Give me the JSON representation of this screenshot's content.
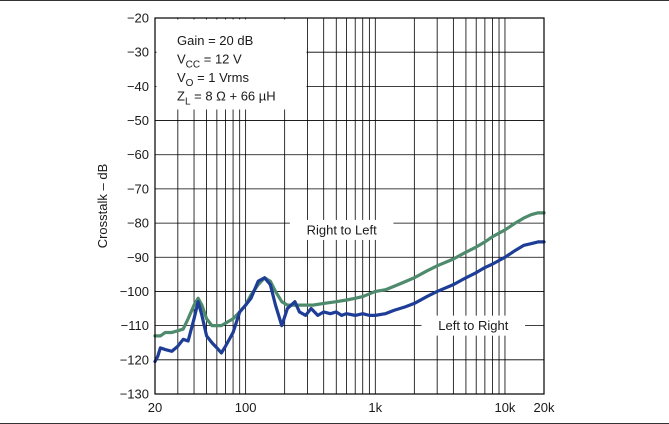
{
  "chart_data": {
    "type": "line",
    "title": "",
    "xlabel": "",
    "ylabel": "Crosstalk – dB",
    "xscale": "log",
    "xlim": [
      20,
      20000
    ],
    "ylim": [
      -130,
      -20
    ],
    "grid": true,
    "x_ticks": [
      {
        "value": 20,
        "label": "20"
      },
      {
        "value": 100,
        "label": "100"
      },
      {
        "value": 1000,
        "label": "1k"
      },
      {
        "value": 10000,
        "label": "10k"
      },
      {
        "value": 20000,
        "label": "20k"
      }
    ],
    "y_ticks": [
      -20,
      -30,
      -40,
      -50,
      -60,
      -70,
      -80,
      -90,
      -100,
      -110,
      -120,
      -130
    ],
    "conditions": [
      {
        "main": "Gain = 20 dB",
        "sub": "",
        "rest": ""
      },
      {
        "main": "V",
        "sub": "CC",
        "rest": " = 12 V"
      },
      {
        "main": "V",
        "sub": "O",
        "rest": " = 1 Vrms"
      },
      {
        "main": "Z",
        "sub": "L",
        "rest": " = 8 Ω + 66 µH"
      }
    ],
    "series": [
      {
        "name": "Right to Left",
        "color": "#4e8a6c",
        "points": [
          [
            20,
            -113
          ],
          [
            22,
            -113
          ],
          [
            24,
            -112
          ],
          [
            27,
            -112
          ],
          [
            30,
            -111.5
          ],
          [
            33,
            -111
          ],
          [
            36,
            -108
          ],
          [
            40,
            -104
          ],
          [
            43,
            -102
          ],
          [
            46,
            -104
          ],
          [
            50,
            -108
          ],
          [
            55,
            -110
          ],
          [
            60,
            -110
          ],
          [
            65,
            -110
          ],
          [
            72,
            -109
          ],
          [
            80,
            -108
          ],
          [
            90,
            -106
          ],
          [
            100,
            -104
          ],
          [
            110,
            -101
          ],
          [
            125,
            -98
          ],
          [
            140,
            -96
          ],
          [
            155,
            -97
          ],
          [
            170,
            -100
          ],
          [
            190,
            -103
          ],
          [
            210,
            -104
          ],
          [
            240,
            -104
          ],
          [
            280,
            -104
          ],
          [
            330,
            -104
          ],
          [
            400,
            -103.5
          ],
          [
            500,
            -103
          ],
          [
            600,
            -102.5
          ],
          [
            700,
            -102
          ],
          [
            800,
            -101.5
          ],
          [
            1000,
            -100
          ],
          [
            1200,
            -99.5
          ],
          [
            1500,
            -98
          ],
          [
            2000,
            -96
          ],
          [
            2500,
            -94
          ],
          [
            3000,
            -92.5
          ],
          [
            4000,
            -90.5
          ],
          [
            5000,
            -88.5
          ],
          [
            6000,
            -87
          ],
          [
            7000,
            -85.5
          ],
          [
            8000,
            -84
          ],
          [
            10000,
            -82
          ],
          [
            12000,
            -80
          ],
          [
            14000,
            -78.5
          ],
          [
            16000,
            -77.5
          ],
          [
            18000,
            -77
          ],
          [
            20000,
            -77
          ]
        ]
      },
      {
        "name": "Left to Right",
        "color": "#1e3d96",
        "points": [
          [
            20,
            -120.5
          ],
          [
            21,
            -119
          ],
          [
            22,
            -116.5
          ],
          [
            24,
            -117
          ],
          [
            27,
            -117.5
          ],
          [
            30,
            -116
          ],
          [
            33,
            -114
          ],
          [
            36,
            -114.5
          ],
          [
            40,
            -108
          ],
          [
            43,
            -103
          ],
          [
            46,
            -107
          ],
          [
            50,
            -113
          ],
          [
            55,
            -115
          ],
          [
            60,
            -116.5
          ],
          [
            65,
            -118
          ],
          [
            70,
            -116
          ],
          [
            80,
            -112
          ],
          [
            90,
            -106
          ],
          [
            100,
            -104
          ],
          [
            110,
            -102
          ],
          [
            125,
            -97
          ],
          [
            140,
            -96
          ],
          [
            155,
            -98
          ],
          [
            170,
            -104
          ],
          [
            190,
            -110
          ],
          [
            210,
            -105
          ],
          [
            240,
            -103
          ],
          [
            260,
            -106
          ],
          [
            290,
            -107
          ],
          [
            320,
            -105
          ],
          [
            360,
            -107
          ],
          [
            400,
            -106
          ],
          [
            450,
            -106.5
          ],
          [
            500,
            -106
          ],
          [
            550,
            -107
          ],
          [
            600,
            -106.5
          ],
          [
            700,
            -107
          ],
          [
            800,
            -106.5
          ],
          [
            900,
            -107
          ],
          [
            1000,
            -107
          ],
          [
            1200,
            -106.5
          ],
          [
            1400,
            -105.5
          ],
          [
            1700,
            -104.5
          ],
          [
            2000,
            -103.5
          ],
          [
            2500,
            -101.5
          ],
          [
            3000,
            -100
          ],
          [
            4000,
            -98
          ],
          [
            5000,
            -96
          ],
          [
            6000,
            -94.5
          ],
          [
            7000,
            -93
          ],
          [
            8000,
            -92
          ],
          [
            10000,
            -90
          ],
          [
            12000,
            -88
          ],
          [
            14000,
            -86.5
          ],
          [
            16000,
            -86
          ],
          [
            18000,
            -85.5
          ],
          [
            20000,
            -85.5
          ]
        ]
      }
    ],
    "annotations": [
      {
        "text": "Right to Left",
        "at": [
          550,
          -82
        ]
      },
      {
        "text": "Left to Right",
        "at": [
          5700,
          -110
        ]
      }
    ]
  }
}
